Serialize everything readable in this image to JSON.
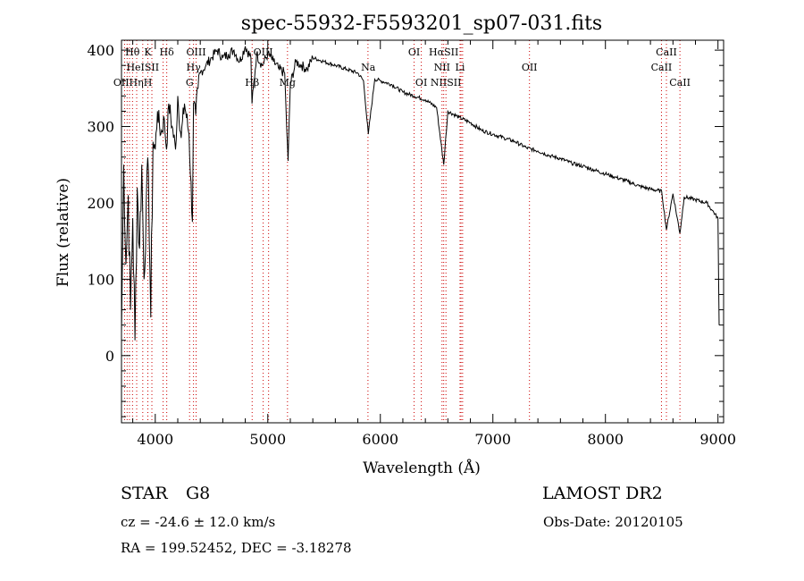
{
  "chart_data": {
    "type": "line",
    "title": "spec-55932-F5593201_sp07-031.fits",
    "xlabel": "Wavelength (Å)",
    "ylabel": "Flux (relative)",
    "xlim": [
      3700,
      9050
    ],
    "ylim": [
      -88,
      413
    ],
    "x_ticks": [
      4000,
      5000,
      6000,
      7000,
      8000,
      9000
    ],
    "y_ticks": [
      0,
      100,
      200,
      300,
      400
    ],
    "grid": false,
    "series": [
      {
        "x": [
          3700,
          3720,
          3740,
          3760,
          3780,
          3800,
          3820,
          3840,
          3860,
          3880,
          3900,
          3920,
          3940,
          3960,
          3980,
          4000,
          4020,
          4050,
          4080,
          4100,
          4120,
          4150,
          4180,
          4200,
          4230,
          4260,
          4300,
          4330,
          4340,
          4360,
          4380,
          4400,
          4450,
          4500,
          4550,
          4600,
          4650,
          4700,
          4750,
          4800,
          4850,
          4860,
          4900,
          4950,
          5000,
          5050,
          5100,
          5150,
          5170,
          5180,
          5200,
          5250,
          5300,
          5350,
          5400,
          5500,
          5600,
          5700,
          5800,
          5850,
          5893,
          5950,
          6000,
          6100,
          6200,
          6300,
          6400,
          6500,
          6563,
          6600,
          6700,
          6800,
          6900,
          7000,
          7100,
          7200,
          7300,
          7400,
          7500,
          7600,
          7700,
          7800,
          7900,
          8000,
          8100,
          8200,
          8300,
          8400,
          8500,
          8542,
          8600,
          8662,
          8700,
          8800,
          8900,
          8950,
          9000,
          9010
        ],
        "y": [
          30,
          250,
          120,
          210,
          60,
          180,
          20,
          220,
          140,
          250,
          100,
          200,
          240,
          50,
          280,
          270,
          320,
          290,
          310,
          270,
          330,
          300,
          270,
          340,
          285,
          330,
          290,
          175,
          330,
          315,
          350,
          370,
          380,
          390,
          400,
          390,
          395,
          400,
          385,
          405,
          390,
          330,
          395,
          380,
          395,
          385,
          375,
          370,
          290,
          255,
          355,
          385,
          380,
          375,
          390,
          385,
          380,
          375,
          370,
          360,
          290,
          362,
          360,
          355,
          345,
          340,
          335,
          325,
          250,
          320,
          312,
          305,
          295,
          290,
          285,
          280,
          272,
          268,
          262,
          258,
          252,
          248,
          243,
          238,
          233,
          228,
          222,
          218,
          215,
          165,
          212,
          160,
          208,
          204,
          200,
          190,
          180,
          40
        ]
      }
    ],
    "line_markers": [
      {
        "label": "Hθ",
        "wl": 3797,
        "row": 0
      },
      {
        "label": "K",
        "wl": 3934,
        "row": 0
      },
      {
        "label": "Hδ",
        "wl": 4102,
        "row": 0
      },
      {
        "label": "OIII",
        "wl": 4363,
        "row": 0
      },
      {
        "label": "OIII",
        "wl": 4959,
        "row": 0
      },
      {
        "label": "OI",
        "wl": 6300,
        "row": 0
      },
      {
        "label": "HαSII",
        "wl": 6563,
        "row": 0
      },
      {
        "label": "CaII",
        "wl": 8542,
        "row": 0
      },
      {
        "label": "HeISII",
        "wl": 3889,
        "row": 1
      },
      {
        "label": "Hγ",
        "wl": 4340,
        "row": 1
      },
      {
        "label": "Na",
        "wl": 5893,
        "row": 1
      },
      {
        "label": "NII",
        "wl": 6548,
        "row": 1
      },
      {
        "label": "Li",
        "wl": 6708,
        "row": 1
      },
      {
        "label": "OII",
        "wl": 7325,
        "row": 1
      },
      {
        "label": "CaII",
        "wl": 8498,
        "row": 1
      },
      {
        "label": "OIIHηH",
        "wl": 3800,
        "row": 2
      },
      {
        "label": "G",
        "wl": 4305,
        "row": 2
      },
      {
        "label": "Hβ",
        "wl": 4861,
        "row": 2
      },
      {
        "label": "Mg",
        "wl": 5175,
        "row": 2
      },
      {
        "label": "OI",
        "wl": 6364,
        "row": 2
      },
      {
        "label": "NIISII",
        "wl": 6583,
        "row": 2
      },
      {
        "label": "CaII",
        "wl": 8662,
        "row": 2
      }
    ],
    "marker_lines": [
      3727,
      3750,
      3771,
      3798,
      3835,
      3889,
      3934,
      3970,
      4070,
      4102,
      4305,
      4340,
      4363,
      4861,
      4959,
      5007,
      5175,
      5890,
      6300,
      6364,
      6548,
      6563,
      6583,
      6708,
      6717,
      6731,
      7325,
      8498,
      8542,
      8662
    ]
  },
  "info": {
    "class_label": "STAR",
    "subclass": "G8",
    "survey": "LAMOST DR2",
    "cz": "cz = -24.6 ± 12.0 km/s",
    "obs_date": "Obs-Date: 20120105",
    "radec": "RA = 199.52452, DEC =  -3.18278"
  },
  "colors": {
    "spectrum": "#000000",
    "marker": "#cc0000",
    "frame": "#000000"
  }
}
